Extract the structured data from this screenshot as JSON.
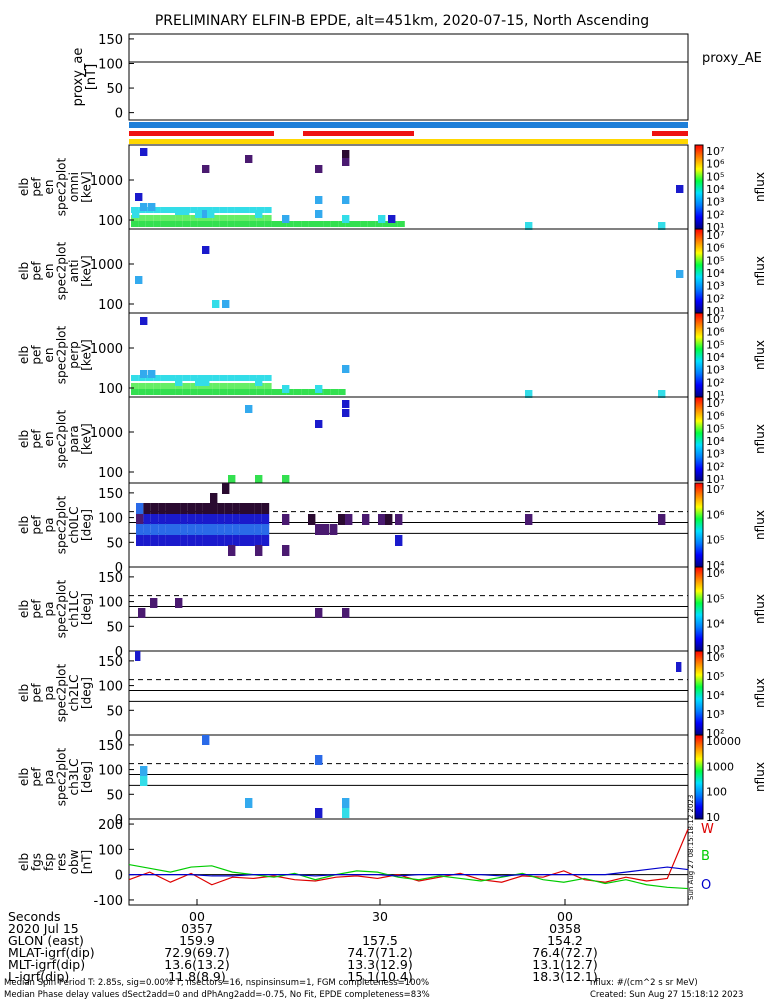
{
  "title": "PRELIMINARY ELFIN-B EPDE, alt=451km, 2020-07-15, North Ascending",
  "colors": {
    "blue_bar": "#1e7fd8",
    "red_bar": "#ee1111",
    "yellow_bar": "#ffd700",
    "w_line": "#dd0000",
    "b_line": "#00cc00",
    "o_line": "#0000cc"
  },
  "panels": {
    "proxy_ae": {
      "ylabel": [
        "proxy_ae",
        "[nT]"
      ],
      "ticks": [
        "150",
        "100",
        "50",
        "0"
      ],
      "right_label": "proxy_AE"
    },
    "spec": [
      {
        "ylabel": [
          "elb",
          "pef",
          "en",
          "spec2plot",
          "omni",
          "[keV]"
        ],
        "ticks": [
          "1000",
          "100"
        ]
      },
      {
        "ylabel": [
          "elb",
          "pef",
          "en",
          "spec2plot",
          "anti",
          "[keV]"
        ],
        "ticks": [
          "1000",
          "100"
        ]
      },
      {
        "ylabel": [
          "elb",
          "pef",
          "en",
          "spec2plot",
          "perp",
          "[keV]"
        ],
        "ticks": [
          "1000",
          "100"
        ]
      },
      {
        "ylabel": [
          "elb",
          "pef",
          "en",
          "spec2plot",
          "para",
          "[keV]"
        ],
        "ticks": [
          "1000",
          "100"
        ]
      }
    ],
    "pa": [
      {
        "ylabel": [
          "elb",
          "pef",
          "pa",
          "spec2plot",
          "ch0LC",
          "[deg]"
        ],
        "ticks": [
          "150",
          "100",
          "50",
          "0"
        ]
      },
      {
        "ylabel": [
          "elb",
          "pef",
          "pa",
          "spec2plot",
          "ch1LC",
          "[deg]"
        ],
        "ticks": [
          "150",
          "100",
          "50",
          "0"
        ]
      },
      {
        "ylabel": [
          "elb",
          "pef",
          "pa",
          "spec2plot",
          "ch2LC",
          "[deg]"
        ],
        "ticks": [
          "150",
          "100",
          "50",
          "0"
        ]
      },
      {
        "ylabel": [
          "elb",
          "pef",
          "pa",
          "spec2plot",
          "ch3LC",
          "[deg]"
        ],
        "ticks": [
          "150",
          "100",
          "50",
          "0"
        ]
      }
    ],
    "fgs": {
      "ylabel": [
        "elb",
        "fgs",
        "fsp",
        "res",
        "obw",
        "[nT]"
      ],
      "ticks": [
        "200",
        "100",
        "0",
        "-100"
      ],
      "legend": [
        "W",
        "B",
        "O"
      ]
    }
  },
  "colorbars": [
    {
      "labels": [
        "10⁷",
        "10⁶",
        "10⁵",
        "10⁴",
        "10³",
        "10²",
        "10¹"
      ],
      "unit": "nflux"
    },
    {
      "labels": [
        "10⁷",
        "10⁶",
        "10⁵",
        "10⁴",
        "10³",
        "10²",
        "10¹"
      ],
      "unit": "nflux"
    },
    {
      "labels": [
        "10⁷",
        "10⁶",
        "10⁵",
        "10⁴",
        "10³",
        "10²",
        "10¹"
      ],
      "unit": "nflux"
    },
    {
      "labels": [
        "10⁷",
        "10⁶",
        "10⁵",
        "10⁴",
        "10³",
        "10²",
        "10¹"
      ],
      "unit": "nflux"
    },
    {
      "labels": [
        "10⁷",
        "10⁶",
        "10⁵",
        "10⁴"
      ],
      "unit": "nflux"
    },
    {
      "labels": [
        "10⁶",
        "10⁵",
        "10⁴",
        "10³"
      ],
      "unit": "nflux"
    },
    {
      "labels": [
        "10⁶",
        "10⁵",
        "10⁴",
        "10³",
        "10²"
      ],
      "unit": "nflux"
    },
    {
      "labels": [
        "10000",
        "1000",
        "100",
        "10"
      ],
      "unit": "nflux"
    }
  ],
  "footer": {
    "rows": [
      [
        "Seconds",
        "00",
        "30",
        "00"
      ],
      [
        "2020 Jul 15",
        "0357",
        "",
        "0358"
      ],
      [
        "GLON (east)",
        "159.9",
        "157.5",
        "154.2"
      ],
      [
        "MLAT-igrf(dip)",
        "72.9(69.7)",
        "74.7(71.2)",
        "76.4(72.7)"
      ],
      [
        "MLT-igrf(dip)",
        "13.6(13.2)",
        "13.3(12.9)",
        "13.1(12.7)"
      ],
      [
        "L-igrf(dip)",
        "11.8(8.9)",
        "15.1(10.4)",
        "18.3(12.1)"
      ]
    ],
    "note1": "Median Spin Period T: 2.85s, sig=0.00% T, nsectors=16, nspinsinsum=1, FGM completeness=100%",
    "note2": "Median Phase delay values dSect2add=0 and dPhAng2add=-0.75, No Fit, EPDE completeness=83%",
    "note3": "nflux: #/(cm^2 s sr MeV)",
    "created": "Created: Sun Aug 27 15:18:12 2023",
    "stamp": "Sun Aug 27 08:15:18:12 2023"
  },
  "chart_data": {
    "type": "heatmap",
    "x_range_seconds": [
      0,
      90
    ],
    "proxy_ae": {
      "values": [
        103
      ],
      "ylim": [
        -15,
        160
      ]
    },
    "spec_omni_cells": [
      [
        1,
        1000,
        6
      ],
      [
        3,
        3,
        5
      ],
      [
        8,
        2,
        4
      ],
      [
        12,
        2,
        4
      ],
      [
        0,
        3,
        2
      ]
    ],
    "pa_ch0_pa_deg": [
      60,
      70,
      80,
      90,
      100,
      110,
      120
    ],
    "fgs_series": [
      {
        "name": "W",
        "trend": [
          -20,
          10,
          -30,
          5,
          -40,
          -10,
          -15,
          -5,
          -20,
          -25,
          -10,
          -5,
          -15,
          0,
          -25,
          -10,
          5,
          -20,
          -30,
          -5,
          -10,
          15,
          -20,
          -30,
          -10,
          -25,
          -15,
          180
        ]
      },
      {
        "name": "B",
        "trend": [
          40,
          25,
          10,
          30,
          35,
          10,
          0,
          -10,
          5,
          -20,
          0,
          15,
          10,
          -10,
          -20,
          -5,
          -15,
          -25,
          -10,
          5,
          -20,
          -30,
          -15,
          -35,
          -20,
          -40,
          -50,
          -55
        ]
      },
      {
        "name": "O",
        "trend": [
          0,
          0,
          0,
          0,
          -5,
          -5,
          0,
          0,
          0,
          -5,
          0,
          0,
          0,
          -5,
          0,
          0,
          0,
          0,
          -5,
          0,
          0,
          0,
          0,
          0,
          10,
          20,
          30,
          20
        ]
      }
    ],
    "ylim_fgs": [
      -120,
      220
    ]
  }
}
